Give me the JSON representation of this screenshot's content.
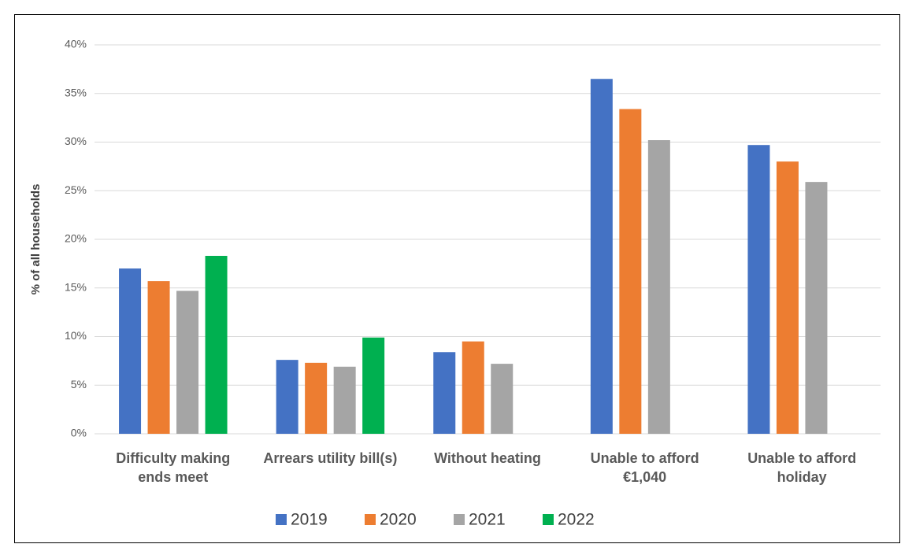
{
  "chart_data": {
    "type": "bar",
    "y_label": "% of all households",
    "categories": [
      "Difficulty making ends meet",
      "Arrears utility bill(s)",
      "Without heating",
      "Unable to afford €1,040",
      "Unable to afford holiday"
    ],
    "series": [
      {
        "name": "2019",
        "color": "#4472c4",
        "values": [
          17.0,
          7.6,
          8.4,
          36.5,
          29.7
        ]
      },
      {
        "name": "2020",
        "color": "#ed7d31",
        "values": [
          15.7,
          7.3,
          9.5,
          33.4,
          28.0
        ]
      },
      {
        "name": "2021",
        "color": "#a5a5a5",
        "values": [
          14.7,
          6.9,
          7.2,
          30.2,
          25.9
        ]
      },
      {
        "name": "2022",
        "color": "#00b050",
        "values": [
          18.3,
          9.9,
          null,
          null,
          null
        ]
      }
    ],
    "ylim": [
      0,
      40
    ],
    "yticks": [
      {
        "value": 0,
        "label": "0%"
      },
      {
        "value": 5,
        "label": "5%"
      },
      {
        "value": 10,
        "label": "10%"
      },
      {
        "value": 15,
        "label": "15%"
      },
      {
        "value": 20,
        "label": "20%"
      },
      {
        "value": 25,
        "label": "25%"
      },
      {
        "value": 30,
        "label": "30%"
      },
      {
        "value": 35,
        "label": "35%"
      },
      {
        "value": 40,
        "label": "40%"
      }
    ],
    "grid": true
  }
}
